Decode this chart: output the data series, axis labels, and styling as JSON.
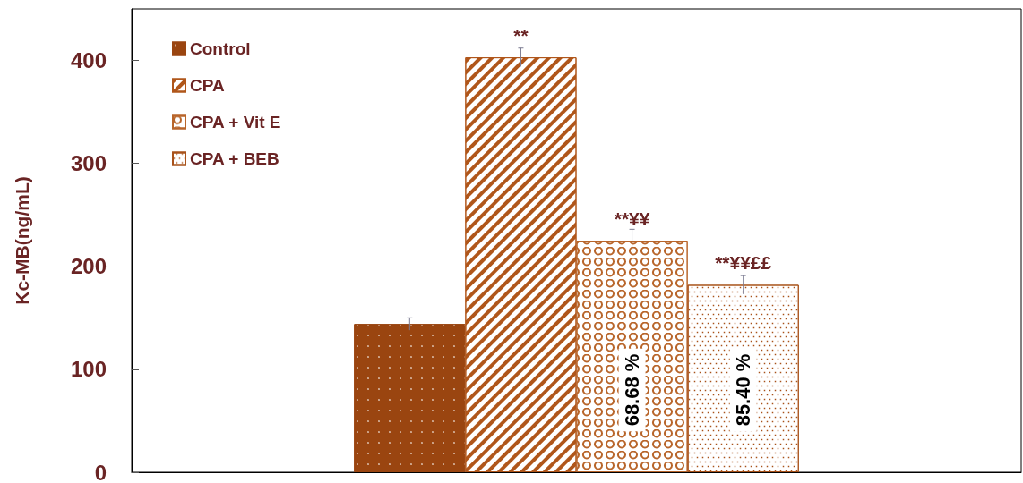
{
  "chart_data": {
    "type": "bar",
    "ylabel": "Kc-MB(ng/mL)",
    "categories": [
      null
    ],
    "ylim": [
      0,
      450
    ],
    "yticks": [
      0,
      100,
      200,
      300,
      400
    ],
    "grid": false,
    "legend": "top left",
    "series": [
      {
        "name": "Control",
        "color": "#9a4510",
        "values": [
          144
        ],
        "errors": [
          6
        ]
      },
      {
        "name": "CPA",
        "color": "#b0561a",
        "values": [
          403
        ],
        "errors": [
          9
        ],
        "value_labels": [
          "**"
        ]
      },
      {
        "name": "CPA + Vit E",
        "color": "#b8652a",
        "values": [
          225
        ],
        "errors": [
          11
        ],
        "value_labels": [
          "**¥¥"
        ]
      },
      {
        "name": "CPA + BEB",
        "color": "#a8521a",
        "values": [
          182
        ],
        "errors": [
          9
        ],
        "value_labels": [
          "**¥¥££"
        ]
      }
    ],
    "annotations": [
      "68.68 %",
      "85.40 %"
    ]
  }
}
